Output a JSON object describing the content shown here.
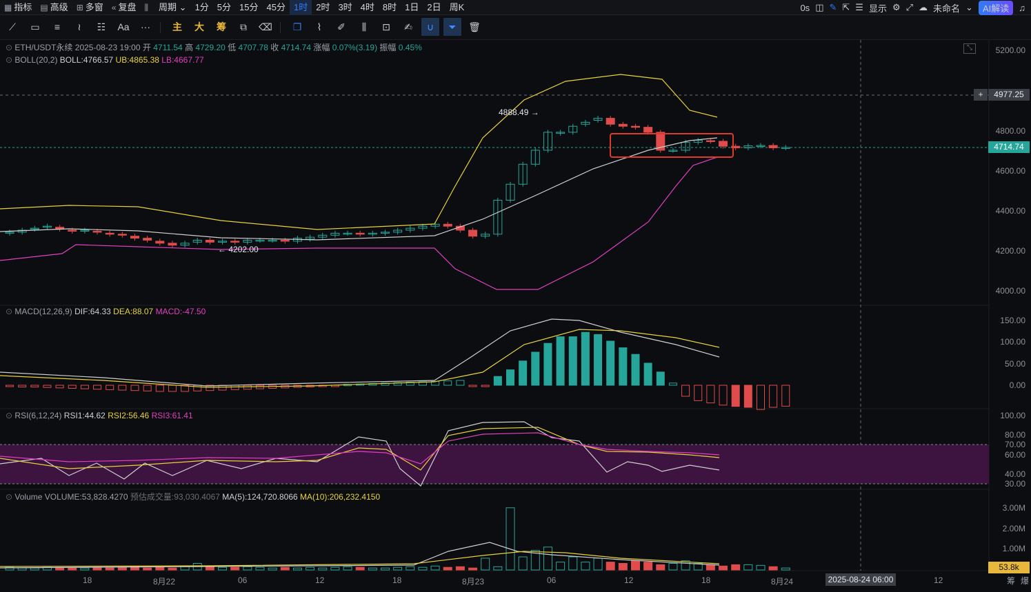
{
  "topbar": {
    "items": [
      {
        "icon": "chart-icon",
        "label": "指标"
      },
      {
        "icon": "calendar-icon",
        "label": "高级"
      },
      {
        "icon": "grid-icon",
        "label": "多窗"
      },
      {
        "icon": "rewind-icon",
        "label": "复盘"
      },
      {
        "icon": "candle-icon",
        "label": ""
      },
      {
        "icon": "",
        "label": "周期"
      },
      {
        "icon": "",
        "label": "1分"
      },
      {
        "icon": "",
        "label": "5分"
      },
      {
        "icon": "",
        "label": "15分"
      },
      {
        "icon": "",
        "label": "45分"
      },
      {
        "icon": "",
        "label": "1时"
      },
      {
        "icon": "",
        "label": "2时"
      },
      {
        "icon": "",
        "label": "3时"
      },
      {
        "icon": "",
        "label": "4时"
      },
      {
        "icon": "",
        "label": "8时"
      },
      {
        "icon": "",
        "label": "1日"
      },
      {
        "icon": "",
        "label": "2日"
      },
      {
        "icon": "",
        "label": "周K"
      }
    ],
    "active": "1时",
    "countdown": "0s",
    "display_label": "显示",
    "layout_name": "未命名",
    "ai_label": "AI解读"
  },
  "toolbar": {
    "gold_labels": [
      "主",
      "大",
      "筹"
    ],
    "text_tool": "Aa",
    "more": "···"
  },
  "header": {
    "symbol": "ETH/USDT永续",
    "datetime": "2025-08-23 19:00",
    "open_label": "开",
    "open": "4711.54",
    "high_label": "高",
    "high": "4729.20",
    "low_label": "低",
    "low": "4707.78",
    "close_label": "收",
    "close": "4714.74",
    "change_label": "涨幅",
    "change": "0.07%(3.19)",
    "amp_label": "振幅",
    "amp": "0.45%"
  },
  "boll": {
    "name": "BOLL(20,2)",
    "boll": "BOLL:4766.57",
    "ub": "UB:4865.38",
    "lb": "LB:4667.77"
  },
  "macd": {
    "name": "MACD(12,26,9)",
    "dif": "DIF:64.33",
    "dea": "DEA:88.07",
    "macd": "MACD:-47.50"
  },
  "rsi": {
    "name": "RSI(6,12,24)",
    "rsi1": "RSI1:44.62",
    "rsi2": "RSI2:56.46",
    "rsi3": "RSI3:61.41"
  },
  "volume": {
    "name": "Volume",
    "vol": "VOLUME:53,828.4270",
    "est": "预估成交量:93,030.4067",
    "ma5": "MA(5):124,720.8066",
    "ma10": "MA(10):206,232.4150"
  },
  "annotations": {
    "high_mark": "4888.49",
    "low_mark": "4202.00"
  },
  "price_axis": [
    "5200.00",
    "4800.00",
    "4600.00",
    "4400.00",
    "4200.00",
    "4000.00"
  ],
  "crosshair_price": "4977.25",
  "last_price": "4714.74",
  "macd_axis": [
    "150.00",
    "100.00",
    "50.00",
    "0.00"
  ],
  "rsi_axis": [
    "100.00",
    "80.00",
    "70.00",
    "60.00",
    "40.00",
    "30.00"
  ],
  "vol_axis": [
    "3.00M",
    "2.00M",
    "1.00M"
  ],
  "last_volume": "53.8k",
  "time_axis": [
    "18",
    "8月22",
    "06",
    "12",
    "18",
    "8月23",
    "06",
    "12",
    "18",
    "8月24",
    "12"
  ],
  "crosshair_time": "2025-08-24 06:00",
  "corner_labels": [
    "筹",
    "爆"
  ],
  "colors": {
    "up": "#26a69a",
    "down": "#e04b4b",
    "boll_mid": "#d0d0d0",
    "boll_ub": "#e8d33a",
    "boll_lb": "#e040c0",
    "accent": "#2f7cf6",
    "highlight_box": "#e03a2a"
  },
  "chart_data": {
    "type": "candlestick",
    "interval": "1h",
    "ohlc_close_approx": [
      4290,
      4300,
      4310,
      4320,
      4305,
      4295,
      4300,
      4290,
      4280,
      4275,
      4260,
      4250,
      4235,
      4225,
      4235,
      4250,
      4240,
      4245,
      4240,
      4250,
      4250,
      4250,
      4245,
      4260,
      4265,
      4275,
      4285,
      4285,
      4280,
      4285,
      4290,
      4300,
      4310,
      4320,
      4330,
      4320,
      4300,
      4270,
      4280,
      4450,
      4530,
      4630,
      4700,
      4790,
      4790,
      4820,
      4840,
      4860,
      4830,
      4820,
      4815,
      4790,
      4700,
      4700,
      4740,
      4750,
      4745,
      4720,
      4712,
      4722,
      4724,
      4712,
      4714
    ],
    "ohlc_open_approx": [
      4285,
      4290,
      4305,
      4315,
      4315,
      4300,
      4295,
      4295,
      4285,
      4280,
      4270,
      4260,
      4245,
      4235,
      4225,
      4240,
      4250,
      4240,
      4245,
      4240,
      4250,
      4250,
      4250,
      4245,
      4255,
      4265,
      4275,
      4285,
      4285,
      4280,
      4285,
      4290,
      4300,
      4310,
      4320,
      4330,
      4320,
      4300,
      4270,
      4280,
      4450,
      4530,
      4630,
      4700,
      4785,
      4790,
      4830,
      4850,
      4860,
      4830,
      4820,
      4815,
      4790,
      4700,
      4700,
      4740,
      4748,
      4745,
      4720,
      4712,
      4722,
      4724,
      4712
    ],
    "macd_hist": [
      -3,
      -4,
      -4,
      -5,
      -6,
      -7,
      -8,
      -9,
      -10,
      -11,
      -12,
      -13,
      -14,
      -14,
      -14,
      -13,
      -12,
      -11,
      -10,
      -9,
      -8,
      -7,
      -6,
      -5,
      -4,
      -3,
      -2,
      2,
      3,
      4,
      5,
      6,
      7,
      8,
      9,
      10,
      11,
      -1,
      -2,
      20,
      35,
      55,
      75,
      95,
      110,
      110,
      120,
      115,
      100,
      85,
      70,
      50,
      30,
      5,
      -25,
      -35,
      -40,
      -45,
      -48,
      -50,
      -55,
      -50,
      -47.5
    ],
    "volume_ma5_last": 124720.8066,
    "volume_ma10_last": 206232.415
  }
}
